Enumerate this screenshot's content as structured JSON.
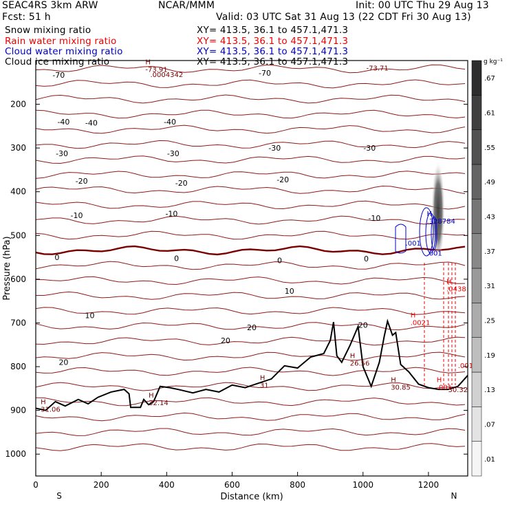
{
  "header": {
    "model": "SEAC4RS   3km ARW",
    "org": "NCAR/MMM",
    "init": "Init: 00 UTC Thu 29 Aug 13",
    "fcst": "Fcst:    51 h",
    "valid": "Valid: 03 UTC Sat 31 Aug 13 (22 CDT Fri 30 Aug 13)"
  },
  "legend": [
    {
      "label": "Snow mixing ratio",
      "xy": "XY= 413.5, 36.1 to 457.1,471.3",
      "color": "#000000"
    },
    {
      "label": "Rain water mixing ratio",
      "xy": "XY= 413.5, 36.1 to 457.1,471.3",
      "color": "#ee0000"
    },
    {
      "label": "Cloud water mixing ratio",
      "xy": "XY= 413.5, 36.1 to 457.1,471.3",
      "color": "#0000cc"
    },
    {
      "label": "Cloud ice mixing ratio",
      "xy": "XY= 413.5, 36.1 to 457.1,471.3",
      "color": "#000000"
    }
  ],
  "chart_data": {
    "type": "cross-section",
    "xlabel": "Distance (km)",
    "ylabel": "Pressure (hPa)",
    "xlim": [
      0,
      1320
    ],
    "ylim": [
      1050,
      100
    ],
    "x_ticks": [
      0,
      200,
      400,
      600,
      800,
      1000,
      1200
    ],
    "y_ticks": [
      200,
      300,
      400,
      500,
      600,
      700,
      800,
      900,
      1000
    ],
    "x_end_labels": {
      "left": "S",
      "right": "N"
    },
    "colorbar": {
      "unit": "g kg⁻¹",
      "ticks": [
        ".01",
        ".07",
        ".13",
        ".19",
        ".25",
        ".31",
        ".37",
        ".43",
        ".49",
        ".55",
        ".61",
        ".67"
      ]
    },
    "isotherm_labels": [
      {
        "t": "-70",
        "x": 70,
        "p": 133
      },
      {
        "t": "-70",
        "x": 700,
        "p": 128
      },
      {
        "t": "-40",
        "x": 85,
        "p": 240
      },
      {
        "t": "-40",
        "x": 170,
        "p": 242
      },
      {
        "t": "-40",
        "x": 410,
        "p": 240
      },
      {
        "t": "-30",
        "x": 80,
        "p": 312
      },
      {
        "t": "-30",
        "x": 420,
        "p": 312
      },
      {
        "t": "-30",
        "x": 730,
        "p": 300
      },
      {
        "t": "-30",
        "x": 1020,
        "p": 300
      },
      {
        "t": "-20",
        "x": 140,
        "p": 375
      },
      {
        "t": "-20",
        "x": 445,
        "p": 380
      },
      {
        "t": "-20",
        "x": 755,
        "p": 372
      },
      {
        "t": "-10",
        "x": 125,
        "p": 454
      },
      {
        "t": "-10",
        "x": 415,
        "p": 450
      },
      {
        "t": "-10",
        "x": 1035,
        "p": 460
      },
      {
        "t": "0",
        "x": 65,
        "p": 550
      },
      {
        "t": "0",
        "x": 430,
        "p": 552
      },
      {
        "t": "0",
        "x": 745,
        "p": 557
      },
      {
        "t": "0",
        "x": 1010,
        "p": 553
      },
      {
        "t": "10",
        "x": 165,
        "p": 683
      },
      {
        "t": "10",
        "x": 775,
        "p": 627
      },
      {
        "t": "20",
        "x": 85,
        "p": 790
      },
      {
        "t": "20",
        "x": 580,
        "p": 740
      },
      {
        "t": "20",
        "x": 660,
        "p": 710
      },
      {
        "t": "20",
        "x": 1000,
        "p": 705
      }
    ],
    "terrain_labels": [
      {
        "h": "H",
        "v": "31.06",
        "x": 15,
        "p": 895
      },
      {
        "h": "H",
        "v": "32.14",
        "x": 345,
        "p": 880
      },
      {
        "h": "H",
        "v": "31",
        "x": 685,
        "p": 840
      },
      {
        "h": "H",
        "v": "26.56",
        "x": 960,
        "p": 790
      },
      {
        "h": "H",
        "v": "30.85",
        "x": 1085,
        "p": 845
      },
      {
        "h": "H",
        "v": ".0021",
        "x": 1145,
        "p": 697
      },
      {
        "h": "H",
        "v": ".001",
        "x": 1225,
        "p": 845
      },
      {
        "h": "",
        "v": "30.32",
        "x": 1260,
        "p": 850
      },
      {
        "h": "",
        "v": ".001",
        "x": 1290,
        "p": 795
      },
      {
        "h": "H",
        "v": ".0438",
        "x": 1255,
        "p": 620
      },
      {
        "h": "H",
        "v": ".328784",
        "x": 1195,
        "p": 465
      },
      {
        "h": "",
        "v": ".001",
        "x": 1130,
        "p": 515
      },
      {
        "h": "",
        "v": ".001",
        "x": 1195,
        "p": 538
      },
      {
        "h": "H",
        "v": "-73.91",
        "x": 335,
        "p": 118
      },
      {
        "h": "",
        "v": ".0004342",
        "x": 350,
        "p": 130
      },
      {
        "h": "",
        "v": "-73.71",
        "x": 1010,
        "p": 115
      }
    ],
    "terrain_profile": [
      [
        0,
        895
      ],
      [
        30,
        900
      ],
      [
        60,
        880
      ],
      [
        90,
        890
      ],
      [
        130,
        875
      ],
      [
        160,
        885
      ],
      [
        190,
        870
      ],
      [
        230,
        858
      ],
      [
        270,
        852
      ],
      [
        285,
        862
      ],
      [
        290,
        893
      ],
      [
        320,
        893
      ],
      [
        330,
        875
      ],
      [
        345,
        887
      ],
      [
        360,
        880
      ],
      [
        380,
        845
      ],
      [
        410,
        848
      ],
      [
        440,
        853
      ],
      [
        480,
        860
      ],
      [
        520,
        852
      ],
      [
        560,
        858
      ],
      [
        600,
        842
      ],
      [
        640,
        848
      ],
      [
        680,
        838
      ],
      [
        720,
        828
      ],
      [
        760,
        798
      ],
      [
        800,
        803
      ],
      [
        840,
        778
      ],
      [
        880,
        770
      ],
      [
        900,
        740
      ],
      [
        910,
        698
      ],
      [
        920,
        775
      ],
      [
        935,
        790
      ],
      [
        960,
        752
      ],
      [
        985,
        708
      ],
      [
        1000,
        800
      ],
      [
        1025,
        845
      ],
      [
        1050,
        790
      ],
      [
        1065,
        730
      ],
      [
        1075,
        696
      ],
      [
        1090,
        728
      ],
      [
        1100,
        722
      ],
      [
        1115,
        795
      ],
      [
        1140,
        812
      ],
      [
        1170,
        840
      ],
      [
        1200,
        848
      ],
      [
        1230,
        852
      ],
      [
        1260,
        852
      ],
      [
        1290,
        845
      ],
      [
        1320,
        820
      ]
    ]
  }
}
